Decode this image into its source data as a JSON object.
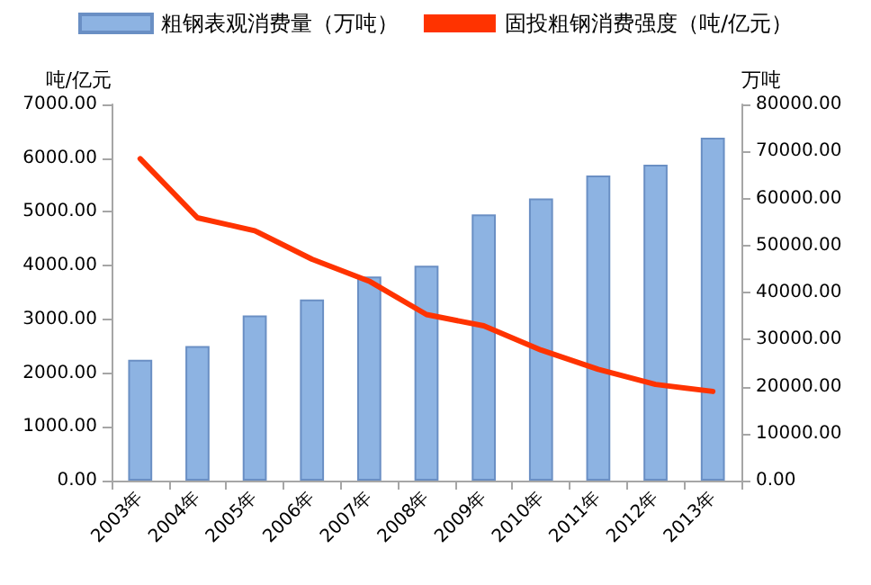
{
  "chart_data": {
    "type": "bar",
    "categories": [
      "2003年",
      "2004年",
      "2005年",
      "2006年",
      "2007年",
      "2008年",
      "2009年",
      "2010年",
      "2011年",
      "2012年",
      "2013年"
    ],
    "series": [
      {
        "name": "粗钢表观消费量（万吨）",
        "axis": "y2",
        "color": "#8db3e2",
        "values": [
          25700,
          28600,
          35100,
          38500,
          43400,
          45700,
          56600,
          60000,
          64900,
          67200,
          72900
        ]
      },
      {
        "name": "固投粗钢消费强度（吨/亿元）",
        "type": "line",
        "axis": "y",
        "color": "#ff3300",
        "values": [
          5990,
          4890,
          4650,
          4120,
          3710,
          3090,
          2880,
          2430,
          2070,
          1790,
          1660
        ]
      }
    ],
    "ylabel": "吨/亿元",
    "y2label": "万吨",
    "ylim": [
      0,
      7000
    ],
    "yticks": [
      {
        "value": 0,
        "label": "0.00"
      },
      {
        "value": 1000,
        "label": "1000.00"
      },
      {
        "value": 2000,
        "label": "2000.00"
      },
      {
        "value": 3000,
        "label": "3000.00"
      },
      {
        "value": 4000,
        "label": "4000.00"
      },
      {
        "value": 5000,
        "label": "5000.00"
      },
      {
        "value": 6000,
        "label": "6000.00"
      },
      {
        "value": 7000,
        "label": "7000.00"
      }
    ],
    "y2lim": [
      0,
      80000
    ],
    "y2ticks": [
      {
        "value": 0,
        "label": "0.00"
      },
      {
        "value": 10000,
        "label": "10000.00"
      },
      {
        "value": 20000,
        "label": "20000.00"
      },
      {
        "value": 30000,
        "label": "30000.00"
      },
      {
        "value": 40000,
        "label": "40000.00"
      },
      {
        "value": 50000,
        "label": "50000.00"
      },
      {
        "value": 60000,
        "label": "60000.00"
      },
      {
        "value": 70000,
        "label": "70000.00"
      },
      {
        "value": 80000,
        "label": "80000.00"
      }
    ],
    "legend": "top",
    "grid": false,
    "marker": "none",
    "line_style": "solid"
  }
}
